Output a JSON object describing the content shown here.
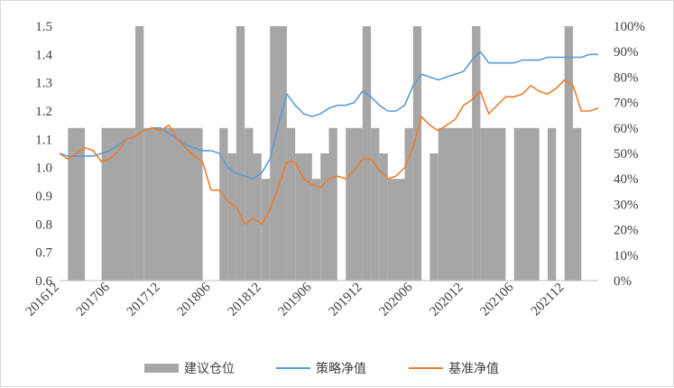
{
  "chart_data": {
    "type": "line",
    "x_ticks": [
      "201612",
      "201706",
      "201712",
      "201806",
      "201812",
      "201906",
      "201912",
      "202006",
      "202012",
      "202106",
      "202112"
    ],
    "x_range": [
      "2016-12",
      "2022-04"
    ],
    "y_left": {
      "ticks": [
        "0.6",
        "0.7",
        "0.8",
        "0.9",
        "1.0",
        "1.1",
        "1.2",
        "1.3",
        "1.4",
        "1.5"
      ],
      "range": [
        0.6,
        1.5
      ]
    },
    "y_right": {
      "ticks": [
        "0%",
        "10%",
        "20%",
        "30%",
        "40%",
        "50%",
        "60%",
        "70%",
        "80%",
        "90%",
        "100%"
      ],
      "range": [
        0,
        100
      ]
    },
    "grid": "none",
    "legend": "bottom",
    "series": [
      {
        "name": "建议仓位",
        "kind": "area",
        "axis": "right",
        "color": "#a6a6a6",
        "segments": [
          {
            "start": "2016-12",
            "end": "2017-01",
            "value": 0
          },
          {
            "start": "2017-01",
            "end": "2017-03",
            "value": 60
          },
          {
            "start": "2017-03",
            "end": "2017-05",
            "value": 0
          },
          {
            "start": "2017-05",
            "end": "2017-09",
            "value": 60
          },
          {
            "start": "2017-09",
            "end": "2017-10",
            "value": 100
          },
          {
            "start": "2017-10",
            "end": "2018-05",
            "value": 60
          },
          {
            "start": "2018-05",
            "end": "2018-07",
            "value": 0
          },
          {
            "start": "2018-07",
            "end": "2018-08",
            "value": 60
          },
          {
            "start": "2018-08",
            "end": "2018-09",
            "value": 50
          },
          {
            "start": "2018-09",
            "end": "2018-10",
            "value": 100
          },
          {
            "start": "2018-10",
            "end": "2018-11",
            "value": 60
          },
          {
            "start": "2018-11",
            "end": "2018-12",
            "value": 50
          },
          {
            "start": "2018-12",
            "end": "2019-01",
            "value": 40
          },
          {
            "start": "2019-01",
            "end": "2019-03",
            "value": 100
          },
          {
            "start": "2019-03",
            "end": "2019-04",
            "value": 60
          },
          {
            "start": "2019-04",
            "end": "2019-06",
            "value": 50
          },
          {
            "start": "2019-06",
            "end": "2019-07",
            "value": 40
          },
          {
            "start": "2019-07",
            "end": "2019-08",
            "value": 50
          },
          {
            "start": "2019-08",
            "end": "2019-09",
            "value": 60
          },
          {
            "start": "2019-09",
            "end": "2019-10",
            "value": 0
          },
          {
            "start": "2019-10",
            "end": "2019-12",
            "value": 60
          },
          {
            "start": "2019-12",
            "end": "2020-01",
            "value": 100
          },
          {
            "start": "2020-01",
            "end": "2020-02",
            "value": 60
          },
          {
            "start": "2020-02",
            "end": "2020-03",
            "value": 50
          },
          {
            "start": "2020-03",
            "end": "2020-05",
            "value": 40
          },
          {
            "start": "2020-05",
            "end": "2020-06",
            "value": 60
          },
          {
            "start": "2020-06",
            "end": "2020-07",
            "value": 100
          },
          {
            "start": "2020-07",
            "end": "2020-08",
            "value": 0
          },
          {
            "start": "2020-08",
            "end": "2020-09",
            "value": 50
          },
          {
            "start": "2020-09",
            "end": "2021-01",
            "value": 60
          },
          {
            "start": "2021-01",
            "end": "2021-02",
            "value": 100
          },
          {
            "start": "2021-02",
            "end": "2021-05",
            "value": 60
          },
          {
            "start": "2021-05",
            "end": "2021-06",
            "value": 0
          },
          {
            "start": "2021-06",
            "end": "2021-09",
            "value": 60
          },
          {
            "start": "2021-09",
            "end": "2021-10",
            "value": 0
          },
          {
            "start": "2021-10",
            "end": "2021-11",
            "value": 60
          },
          {
            "start": "2021-11",
            "end": "2021-12",
            "value": 0
          },
          {
            "start": "2021-12",
            "end": "2022-01",
            "value": 100
          },
          {
            "start": "2022-01",
            "end": "2022-02",
            "value": 60
          }
        ]
      },
      {
        "name": "策略净值",
        "kind": "line",
        "axis": "left",
        "color": "#5b9bd5",
        "points": [
          [
            "2016-12",
            1.05
          ],
          [
            "2017-01",
            1.04
          ],
          [
            "2017-02",
            1.04
          ],
          [
            "2017-03",
            1.04
          ],
          [
            "2017-04",
            1.04
          ],
          [
            "2017-05",
            1.05
          ],
          [
            "2017-06",
            1.06
          ],
          [
            "2017-07",
            1.08
          ],
          [
            "2017-08",
            1.1
          ],
          [
            "2017-09",
            1.11
          ],
          [
            "2017-10",
            1.13
          ],
          [
            "2017-11",
            1.14
          ],
          [
            "2017-12",
            1.14
          ],
          [
            "2018-01",
            1.12
          ],
          [
            "2018-02",
            1.1
          ],
          [
            "2018-03",
            1.08
          ],
          [
            "2018-04",
            1.07
          ],
          [
            "2018-05",
            1.06
          ],
          [
            "2018-06",
            1.06
          ],
          [
            "2018-07",
            1.05
          ],
          [
            "2018-08",
            1.0
          ],
          [
            "2018-09",
            0.98
          ],
          [
            "2018-10",
            0.97
          ],
          [
            "2018-11",
            0.96
          ],
          [
            "2018-12",
            0.98
          ],
          [
            "2019-01",
            1.03
          ],
          [
            "2019-02",
            1.15
          ],
          [
            "2019-03",
            1.26
          ],
          [
            "2019-04",
            1.22
          ],
          [
            "2019-05",
            1.19
          ],
          [
            "2019-06",
            1.18
          ],
          [
            "2019-07",
            1.19
          ],
          [
            "2019-08",
            1.21
          ],
          [
            "2019-09",
            1.22
          ],
          [
            "2019-10",
            1.22
          ],
          [
            "2019-11",
            1.23
          ],
          [
            "2019-12",
            1.27
          ],
          [
            "2020-01",
            1.25
          ],
          [
            "2020-02",
            1.22
          ],
          [
            "2020-03",
            1.2
          ],
          [
            "2020-04",
            1.2
          ],
          [
            "2020-05",
            1.22
          ],
          [
            "2020-06",
            1.29
          ],
          [
            "2020-07",
            1.33
          ],
          [
            "2020-08",
            1.32
          ],
          [
            "2020-09",
            1.31
          ],
          [
            "2020-10",
            1.32
          ],
          [
            "2020-11",
            1.33
          ],
          [
            "2020-12",
            1.34
          ],
          [
            "2021-01",
            1.38
          ],
          [
            "2021-02",
            1.41
          ],
          [
            "2021-03",
            1.37
          ],
          [
            "2021-04",
            1.37
          ],
          [
            "2021-05",
            1.37
          ],
          [
            "2021-06",
            1.37
          ],
          [
            "2021-07",
            1.38
          ],
          [
            "2021-08",
            1.38
          ],
          [
            "2021-09",
            1.38
          ],
          [
            "2021-10",
            1.39
          ],
          [
            "2021-11",
            1.39
          ],
          [
            "2021-12",
            1.39
          ],
          [
            "2022-01",
            1.39
          ],
          [
            "2022-02",
            1.39
          ],
          [
            "2022-03",
            1.4
          ],
          [
            "2022-04",
            1.4
          ]
        ]
      },
      {
        "name": "基准净值",
        "kind": "line",
        "axis": "left",
        "color": "#ed7d31",
        "points": [
          [
            "2016-12",
            1.05
          ],
          [
            "2017-01",
            1.03
          ],
          [
            "2017-02",
            1.05
          ],
          [
            "2017-03",
            1.07
          ],
          [
            "2017-04",
            1.06
          ],
          [
            "2017-05",
            1.02
          ],
          [
            "2017-06",
            1.03
          ],
          [
            "2017-07",
            1.06
          ],
          [
            "2017-08",
            1.1
          ],
          [
            "2017-09",
            1.11
          ],
          [
            "2017-10",
            1.13
          ],
          [
            "2017-11",
            1.14
          ],
          [
            "2017-12",
            1.13
          ],
          [
            "2018-01",
            1.15
          ],
          [
            "2018-02",
            1.1
          ],
          [
            "2018-03",
            1.07
          ],
          [
            "2018-04",
            1.04
          ],
          [
            "2018-05",
            1.02
          ],
          [
            "2018-06",
            0.92
          ],
          [
            "2018-07",
            0.92
          ],
          [
            "2018-08",
            0.88
          ],
          [
            "2018-09",
            0.86
          ],
          [
            "2018-10",
            0.8
          ],
          [
            "2018-11",
            0.82
          ],
          [
            "2018-12",
            0.8
          ],
          [
            "2019-01",
            0.85
          ],
          [
            "2019-02",
            0.93
          ],
          [
            "2019-03",
            1.02
          ],
          [
            "2019-04",
            1.02
          ],
          [
            "2019-05",
            0.96
          ],
          [
            "2019-06",
            0.94
          ],
          [
            "2019-07",
            0.93
          ],
          [
            "2019-08",
            0.96
          ],
          [
            "2019-09",
            0.97
          ],
          [
            "2019-10",
            0.96
          ],
          [
            "2019-11",
            0.99
          ],
          [
            "2019-12",
            1.03
          ],
          [
            "2020-01",
            1.03
          ],
          [
            "2020-02",
            0.99
          ],
          [
            "2020-03",
            0.96
          ],
          [
            "2020-04",
            0.97
          ],
          [
            "2020-05",
            1.0
          ],
          [
            "2020-06",
            1.07
          ],
          [
            "2020-07",
            1.18
          ],
          [
            "2020-08",
            1.15
          ],
          [
            "2020-09",
            1.13
          ],
          [
            "2020-10",
            1.15
          ],
          [
            "2020-11",
            1.17
          ],
          [
            "2020-12",
            1.22
          ],
          [
            "2021-01",
            1.24
          ],
          [
            "2021-02",
            1.27
          ],
          [
            "2021-03",
            1.19
          ],
          [
            "2021-04",
            1.22
          ],
          [
            "2021-05",
            1.25
          ],
          [
            "2021-06",
            1.25
          ],
          [
            "2021-07",
            1.26
          ],
          [
            "2021-08",
            1.29
          ],
          [
            "2021-09",
            1.27
          ],
          [
            "2021-10",
            1.26
          ],
          [
            "2021-11",
            1.28
          ],
          [
            "2021-12",
            1.31
          ],
          [
            "2022-01",
            1.29
          ],
          [
            "2022-02",
            1.2
          ],
          [
            "2022-03",
            1.2
          ],
          [
            "2022-04",
            1.21
          ]
        ]
      }
    ]
  }
}
